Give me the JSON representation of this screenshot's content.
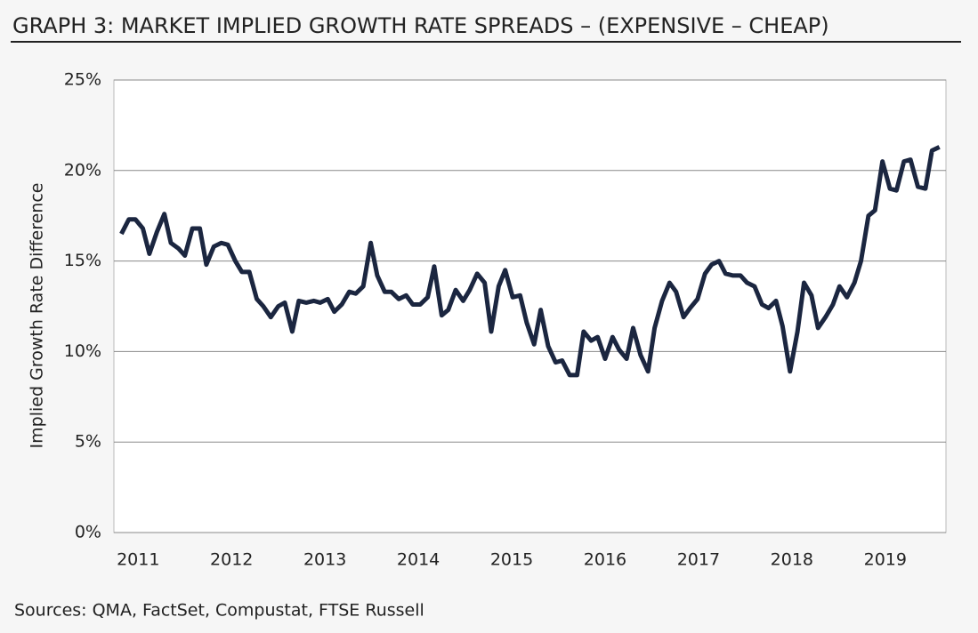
{
  "chart_data": {
    "type": "line",
    "title": "GRAPH 3: MARKET IMPLIED GROWTH RATE SPREADS – (EXPENSIVE – CHEAP)",
    "y_label": "Implied Growth Rate Difference",
    "source": "Sources: QMA, FactSet, Compustat, FTSE Russell",
    "x": [
      2010.82,
      2010.9,
      2010.97,
      2011.05,
      2011.12,
      2011.2,
      2011.28,
      2011.35,
      2011.43,
      2011.5,
      2011.58,
      2011.66,
      2011.73,
      2011.81,
      2011.89,
      2011.96,
      2012.04,
      2012.11,
      2012.19,
      2012.27,
      2012.34,
      2012.42,
      2012.5,
      2012.57,
      2012.65,
      2012.72,
      2012.8,
      2012.88,
      2012.95,
      2013.03,
      2013.1,
      2013.18,
      2013.26,
      2013.33,
      2013.41,
      2013.49,
      2013.56,
      2013.64,
      2013.71,
      2013.79,
      2013.87,
      2013.94,
      2014.02,
      2014.1,
      2014.17,
      2014.25,
      2014.32,
      2014.4,
      2014.48,
      2014.55,
      2014.63,
      2014.71,
      2014.78,
      2014.86,
      2014.93,
      2015.01,
      2015.09,
      2015.16,
      2015.24,
      2015.31,
      2015.39,
      2015.47,
      2015.54,
      2015.62,
      2015.7,
      2015.77,
      2015.85,
      2015.92,
      2016.0,
      2016.08,
      2016.15,
      2016.23,
      2016.3,
      2016.38,
      2016.46,
      2016.53,
      2016.61,
      2016.69,
      2016.76,
      2016.84,
      2016.91,
      2016.99,
      2017.07,
      2017.14,
      2017.22,
      2017.29,
      2017.37,
      2017.45,
      2017.52,
      2017.6,
      2017.68,
      2017.75,
      2017.83,
      2017.9,
      2017.98,
      2018.06,
      2018.13,
      2018.21,
      2018.28,
      2018.36,
      2018.44,
      2018.51,
      2018.59,
      2018.67,
      2018.74,
      2018.82,
      2018.89,
      2018.97,
      2019.05,
      2019.12,
      2019.2,
      2019.27,
      2019.35,
      2019.43,
      2019.5,
      2019.58
    ],
    "series": [
      {
        "color": "#1b2640",
        "values": [
          16.5,
          17.3,
          17.3,
          16.8,
          15.4,
          16.6,
          17.6,
          16.0,
          15.7,
          15.3,
          16.8,
          16.8,
          14.8,
          15.8,
          16.0,
          15.9,
          15.0,
          14.4,
          14.4,
          12.9,
          12.5,
          11.9,
          12.5,
          12.7,
          11.1,
          12.8,
          12.7,
          12.8,
          12.7,
          12.9,
          12.2,
          12.6,
          13.3,
          13.2,
          13.6,
          16.0,
          14.2,
          13.3,
          13.3,
          12.9,
          13.1,
          12.6,
          12.6,
          13.0,
          14.7,
          12.0,
          12.3,
          13.4,
          12.8,
          13.4,
          14.3,
          13.8,
          11.1,
          13.6,
          14.5,
          13.0,
          13.1,
          11.6,
          10.4,
          12.3,
          10.3,
          9.4,
          9.5,
          8.7,
          8.7,
          11.1,
          10.6,
          10.8,
          9.6,
          10.8,
          10.1,
          9.6,
          11.3,
          9.8,
          8.9,
          11.3,
          12.8,
          13.8,
          13.3,
          11.9,
          12.4,
          12.9,
          14.3,
          14.8,
          15.0,
          14.3,
          14.2,
          14.2,
          13.8,
          13.6,
          12.6,
          12.4,
          12.8,
          11.4,
          8.9,
          11.1,
          13.8,
          13.1,
          11.3,
          11.9,
          12.6,
          13.6,
          13.0,
          13.8,
          15.0,
          17.5,
          17.8,
          20.5,
          19.0,
          18.9,
          20.5,
          20.6,
          19.1,
          19.0,
          21.1,
          21.3
        ]
      }
    ],
    "xlim": [
      2010.74,
      2019.65
    ],
    "xticks": [
      2011,
      2012,
      2013,
      2014,
      2015,
      2016,
      2017,
      2018,
      2019
    ],
    "ylim": [
      0,
      25
    ],
    "yticks": [
      {
        "value": 0,
        "label": "0%"
      },
      {
        "value": 5,
        "label": "5%"
      },
      {
        "value": 10,
        "label": "10%"
      },
      {
        "value": 15,
        "label": "15%"
      },
      {
        "value": 20,
        "label": "20%"
      },
      {
        "value": 25,
        "label": "25%"
      }
    ],
    "grid": true
  }
}
